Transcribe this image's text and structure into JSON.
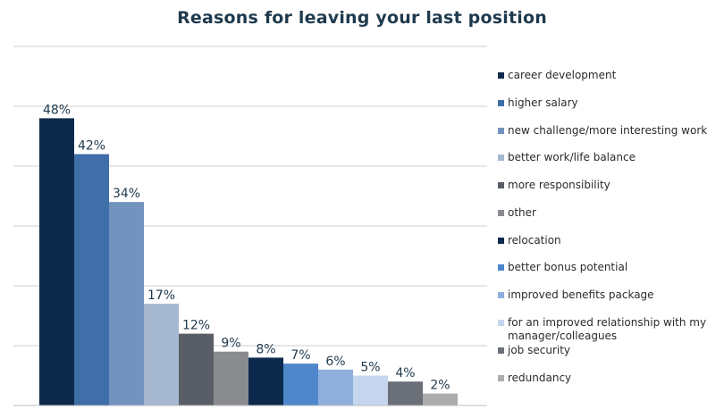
{
  "chart_data": {
    "type": "bar",
    "title": "Reasons for leaving your last position",
    "xlabel": "",
    "ylabel": "",
    "ylim": [
      0,
      60
    ],
    "grid": true,
    "legend_position": "right",
    "categories": [
      "career development",
      "higher salary",
      "new challenge/more interesting work",
      "better work/life balance",
      "more responsibility",
      "other",
      "relocation",
      "better bonus potential",
      "improved benefits package",
      "for an improved relationship with my manager/colleagues",
      "job security",
      "redundancy"
    ],
    "values": [
      48,
      42,
      34,
      17,
      12,
      9,
      8,
      7,
      6,
      5,
      4,
      2
    ],
    "data_labels": [
      "48%",
      "42%",
      "34%",
      "17%",
      "12%",
      "9%",
      "8%",
      "7%",
      "6%",
      "5%",
      "4%",
      "2%"
    ],
    "colors": [
      "#0d2a4d",
      "#3f6ea8",
      "#7193be",
      "#a6b8cf",
      "#595e66",
      "#898b8e",
      "#0d2a4d",
      "#4e87cb",
      "#8fb0dc",
      "#c6d6ee",
      "#6b7078",
      "#acacac"
    ]
  }
}
